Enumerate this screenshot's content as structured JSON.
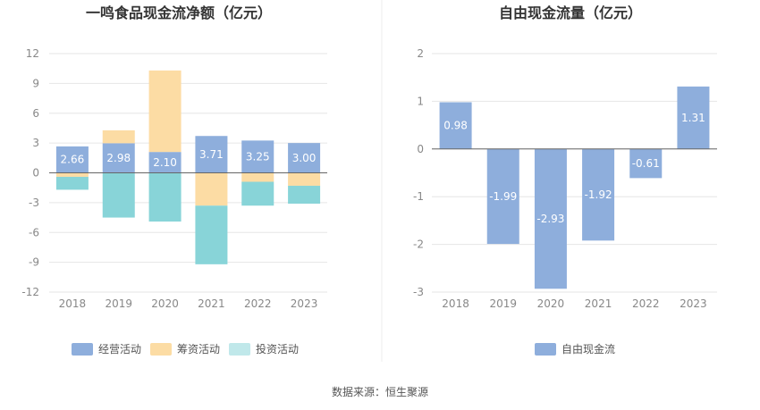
{
  "source": "数据来源：恒生聚源",
  "colors": {
    "operating": "#8eaedc",
    "financing": "#fcdca4",
    "investing": "#88d4d8",
    "fcf": "#8eaedc"
  },
  "chart_data": [
    {
      "type": "bar",
      "title": "一鸣食品现金流净额（亿元）",
      "categories": [
        "2018",
        "2019",
        "2020",
        "2021",
        "2022",
        "2023"
      ],
      "ylim": [
        -12,
        12
      ],
      "yticks": [
        "12",
        "9",
        "6",
        "3",
        "0",
        "-3",
        "-6",
        "-9",
        "-12"
      ],
      "stacked": true,
      "legend_position": "bottom",
      "grid": true,
      "series": [
        {
          "name": "经营活动",
          "values": [
            2.66,
            2.98,
            2.1,
            3.71,
            3.25,
            3.0
          ],
          "labels": [
            "2.66",
            "2.98",
            "2.10",
            "3.71",
            "3.25",
            "3.00"
          ]
        },
        {
          "name": "筹资活动",
          "values": [
            -0.4,
            1.3,
            8.2,
            -3.3,
            -0.9,
            -1.3
          ]
        },
        {
          "name": "投资活动",
          "values": [
            -1.3,
            -4.5,
            -4.9,
            -5.9,
            -2.4,
            -1.8
          ]
        }
      ]
    },
    {
      "type": "bar",
      "title": "自由现金流量（亿元）",
      "categories": [
        "2018",
        "2019",
        "2020",
        "2021",
        "2022",
        "2023"
      ],
      "ylim": [
        -3,
        2
      ],
      "yticks": [
        "2",
        "1",
        "0",
        "-1",
        "-2",
        "-3"
      ],
      "legend_position": "bottom",
      "grid": true,
      "series": [
        {
          "name": "自由现金流",
          "values": [
            0.98,
            -1.99,
            -2.93,
            -1.92,
            -0.61,
            1.31
          ],
          "labels": [
            "0.98",
            "-1.99",
            "-2.93",
            "-1.92",
            "-0.61",
            "1.31"
          ]
        }
      ]
    }
  ]
}
